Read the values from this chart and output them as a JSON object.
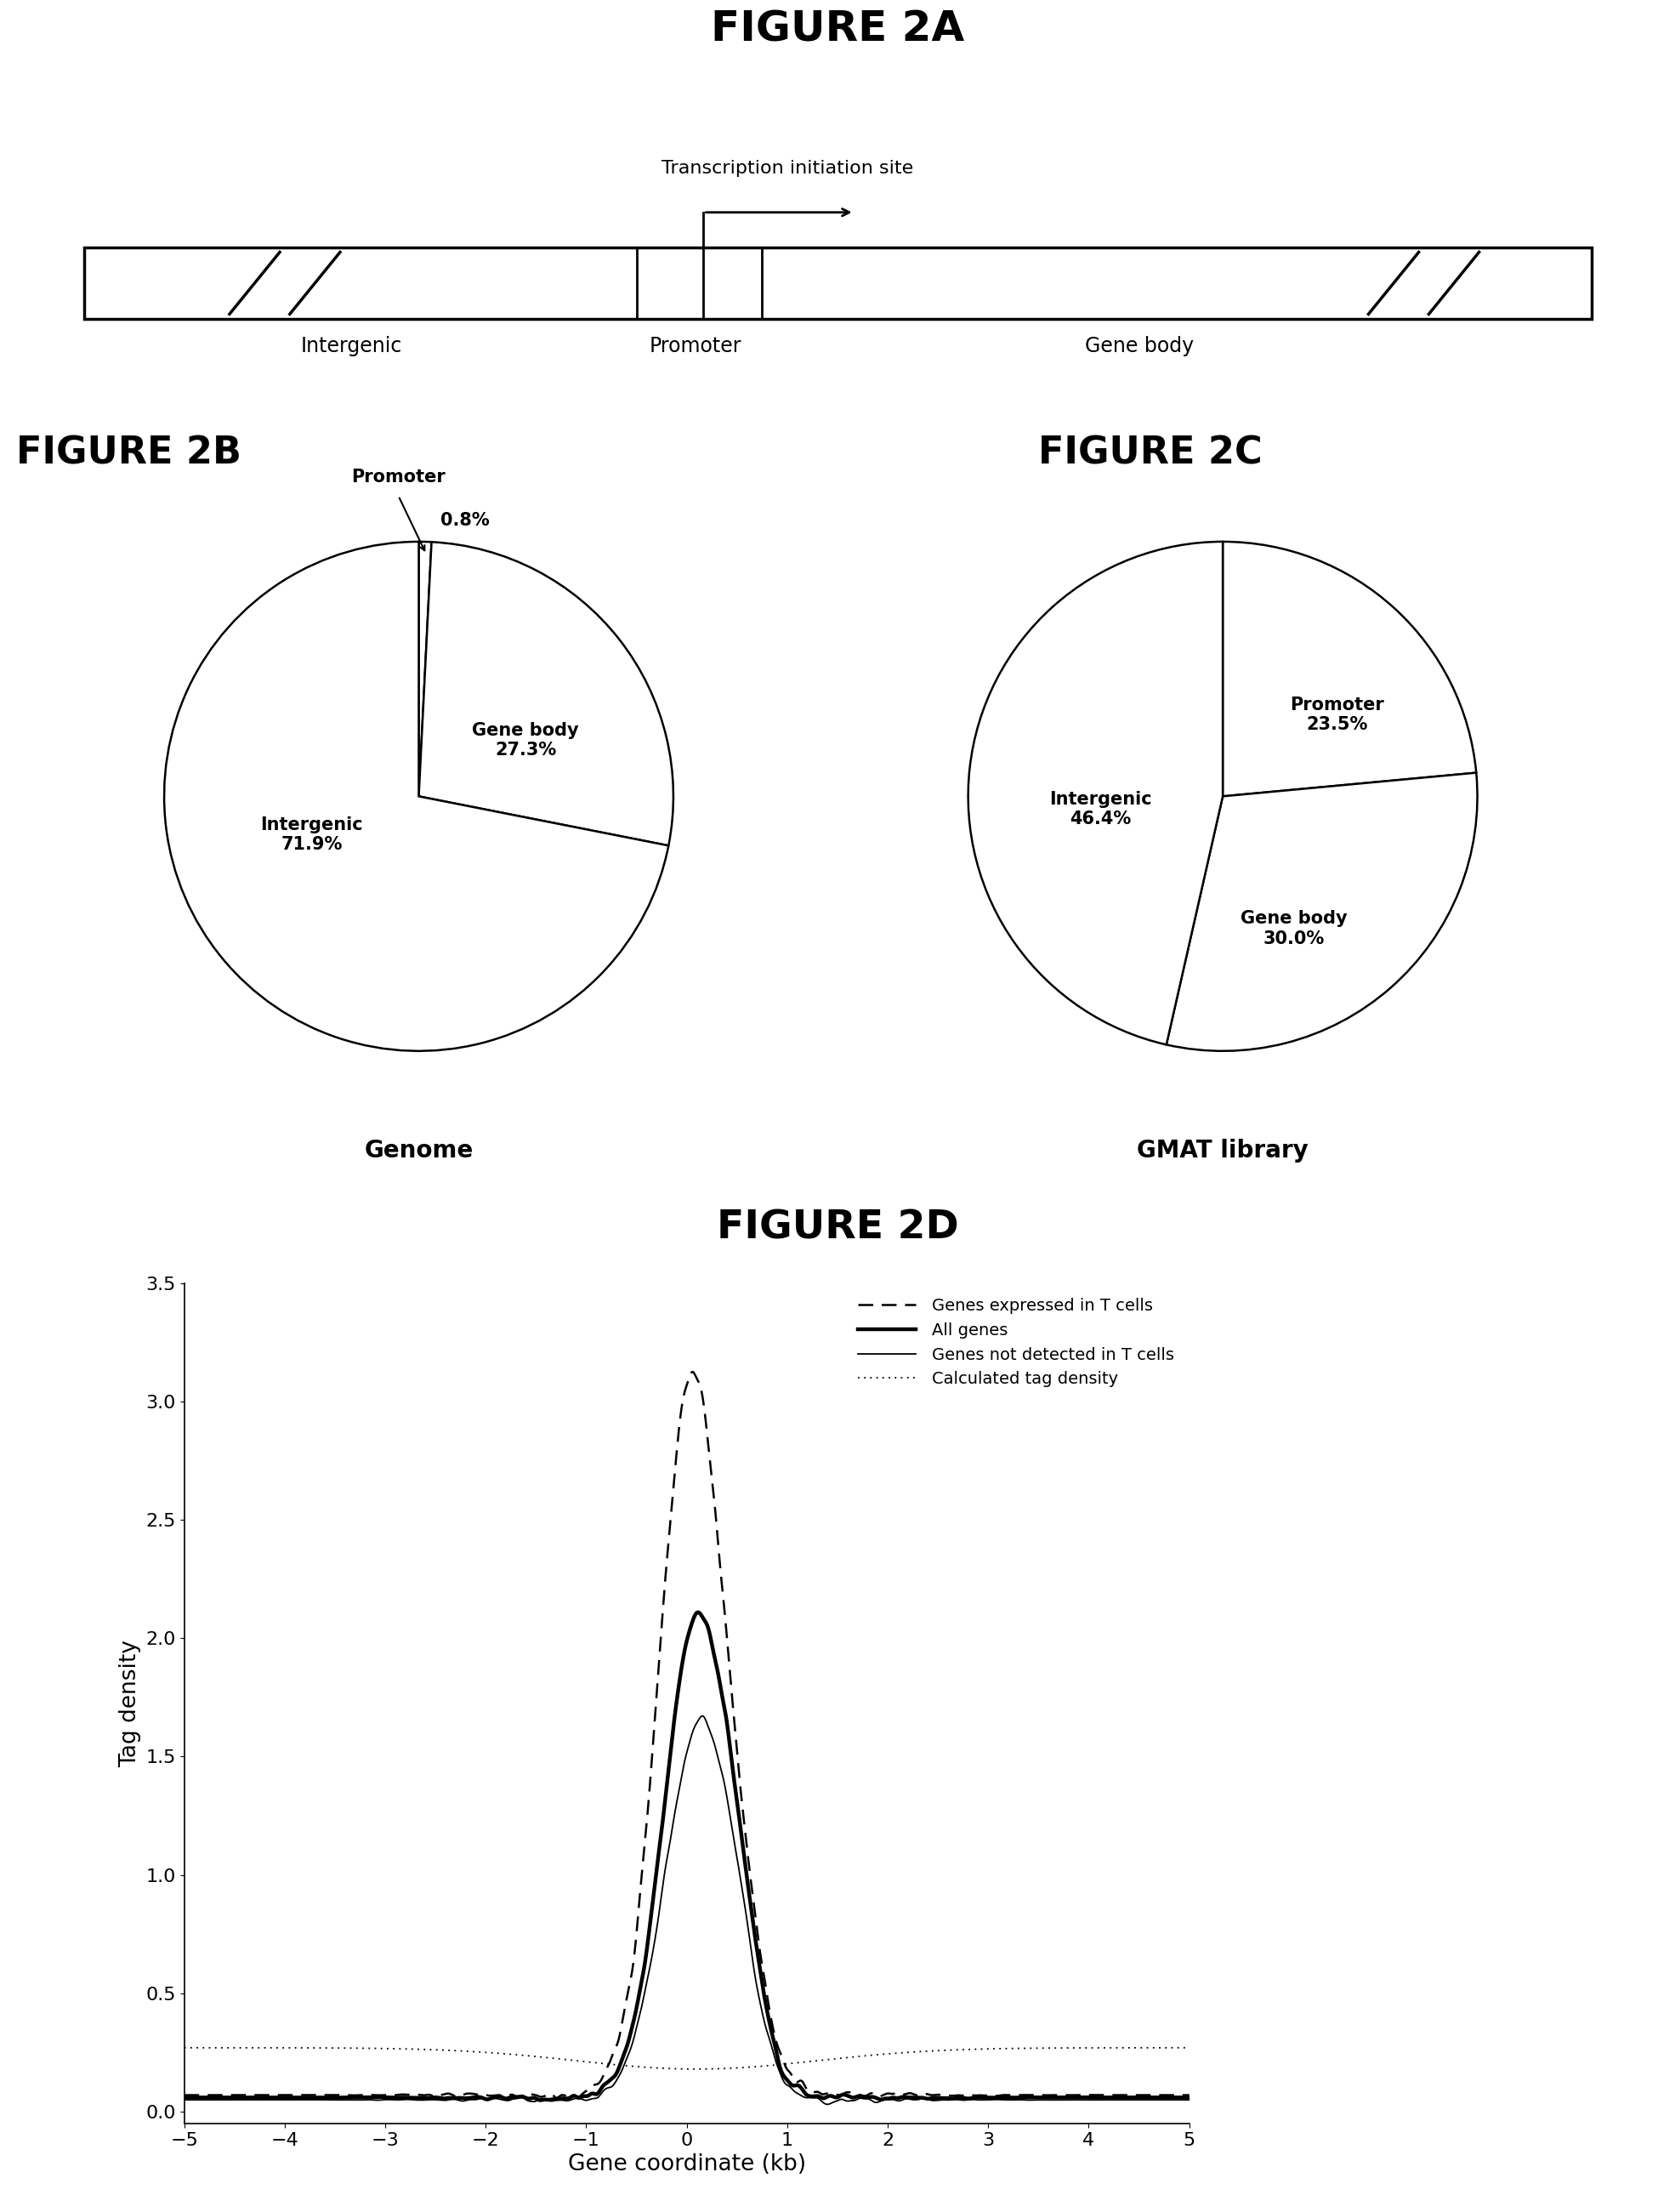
{
  "fig2a_title": "FIGURE 2A",
  "fig2b_title": "FIGURE 2B",
  "fig2c_title": "FIGURE 2C",
  "fig2d_title": "FIGURE 2D",
  "transcription_label": "Transcription initiation site",
  "gene_labels": [
    "Intergenic",
    "Promoter",
    "Gene body"
  ],
  "genome_pie": {
    "values": [
      0.8,
      27.3,
      71.9
    ],
    "title": "Genome"
  },
  "gmat_pie": {
    "values": [
      23.5,
      30.0,
      46.4
    ],
    "title": "GMAT library"
  },
  "line_legend": [
    "Genes expressed in T cells",
    "All genes",
    "Genes not detected in T cells",
    "Calculated tag density"
  ],
  "xlabel": "Gene coordinate (kb)",
  "ylabel": "Tag density",
  "xlim": [
    -5,
    5
  ],
  "ylim": [
    -0.05,
    3.5
  ],
  "yticks": [
    0.0,
    0.5,
    1.0,
    1.5,
    2.0,
    2.5,
    3.0,
    3.5
  ],
  "xticks": [
    -5,
    -4,
    -3,
    -2,
    -1,
    0,
    1,
    2,
    3,
    4,
    5
  ],
  "bg_color": "#ffffff"
}
